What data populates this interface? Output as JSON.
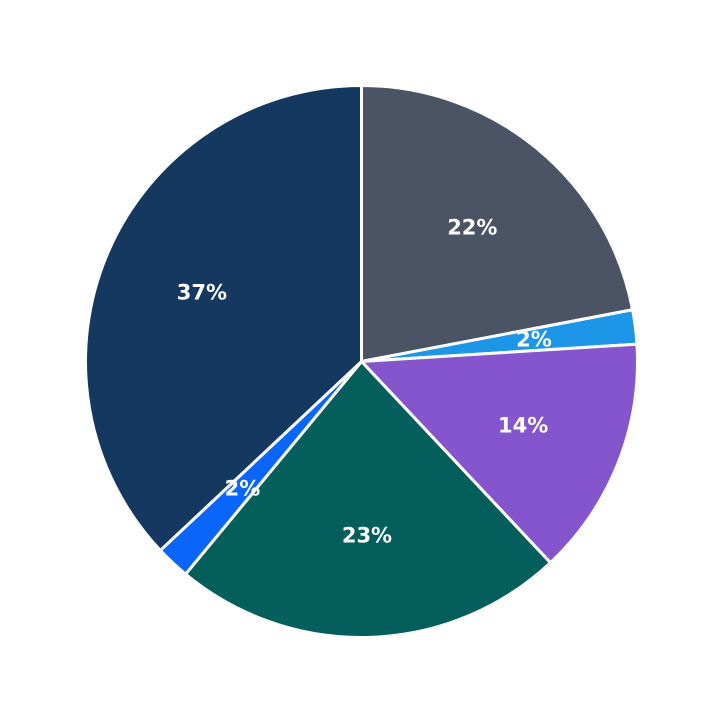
{
  "chart_data": {
    "type": "pie",
    "slices": [
      {
        "label": "22%",
        "value": 22,
        "color": "#4a5464"
      },
      {
        "label": "2%",
        "value": 2,
        "color": "#1e96e8"
      },
      {
        "label": "14%",
        "value": 14,
        "color": "#8455cc"
      },
      {
        "label": "23%",
        "value": 23,
        "color": "#035e5c"
      },
      {
        "label": "2%",
        "value": 2,
        "color": "#0a66fa"
      },
      {
        "label": "37%",
        "value": 37,
        "color": "#153861"
      }
    ],
    "start": "top",
    "direction": "clockwise",
    "legend": "none"
  }
}
